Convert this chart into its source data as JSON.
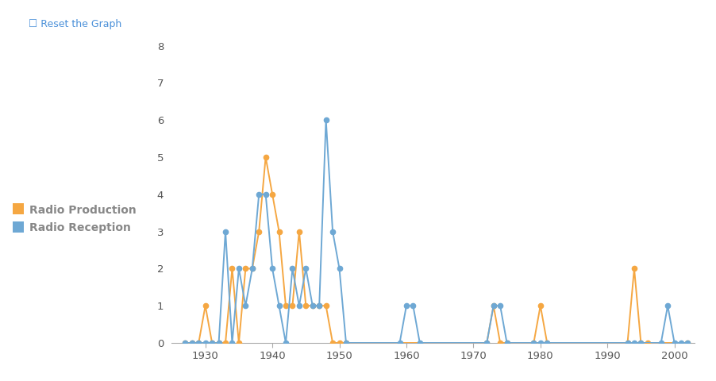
{
  "radio_production_years": [
    1927,
    1928,
    1929,
    1930,
    1931,
    1932,
    1933,
    1934,
    1935,
    1936,
    1937,
    1938,
    1939,
    1940,
    1941,
    1942,
    1943,
    1944,
    1945,
    1946,
    1947,
    1948,
    1949,
    1950,
    1951,
    1972,
    1973,
    1974,
    1975,
    1979,
    1980,
    1981,
    1993,
    1994,
    1995,
    1996,
    2002
  ],
  "radio_production_values": [
    0,
    0,
    0,
    1,
    0,
    0,
    0,
    2,
    0,
    2,
    2,
    3,
    5,
    4,
    3,
    1,
    1,
    3,
    1,
    1,
    1,
    1,
    0,
    0,
    0,
    0,
    1,
    0,
    0,
    0,
    1,
    0,
    0,
    2,
    0,
    0,
    0
  ],
  "radio_reception_years": [
    1927,
    1928,
    1929,
    1930,
    1931,
    1932,
    1933,
    1934,
    1935,
    1936,
    1937,
    1938,
    1939,
    1940,
    1941,
    1942,
    1943,
    1944,
    1945,
    1946,
    1947,
    1948,
    1949,
    1950,
    1951,
    1959,
    1960,
    1961,
    1962,
    1972,
    1973,
    1974,
    1975,
    1979,
    1980,
    1981,
    1993,
    1994,
    1995,
    1998,
    1999,
    2000,
    2001,
    2002
  ],
  "radio_reception_values": [
    0,
    0,
    0,
    0,
    0,
    0,
    3,
    0,
    2,
    1,
    2,
    4,
    4,
    2,
    1,
    0,
    2,
    1,
    2,
    1,
    1,
    6,
    3,
    2,
    0,
    0,
    1,
    1,
    0,
    0,
    1,
    1,
    0,
    0,
    0,
    0,
    0,
    0,
    0,
    0,
    1,
    0,
    0,
    0
  ],
  "production_color": "#f5a742",
  "reception_color": "#6ea8d4",
  "background_color": "#ffffff",
  "ylim": [
    0,
    8
  ],
  "xlim": [
    1925,
    2003
  ],
  "xticks": [
    1930,
    1940,
    1950,
    1960,
    1970,
    1980,
    1990,
    2000
  ],
  "yticks": [
    0,
    1,
    2,
    3,
    4,
    5,
    6,
    7,
    8
  ],
  "legend_production": "Radio Production",
  "legend_reception": "Radio Reception",
  "header_text": "Reset the Graph"
}
